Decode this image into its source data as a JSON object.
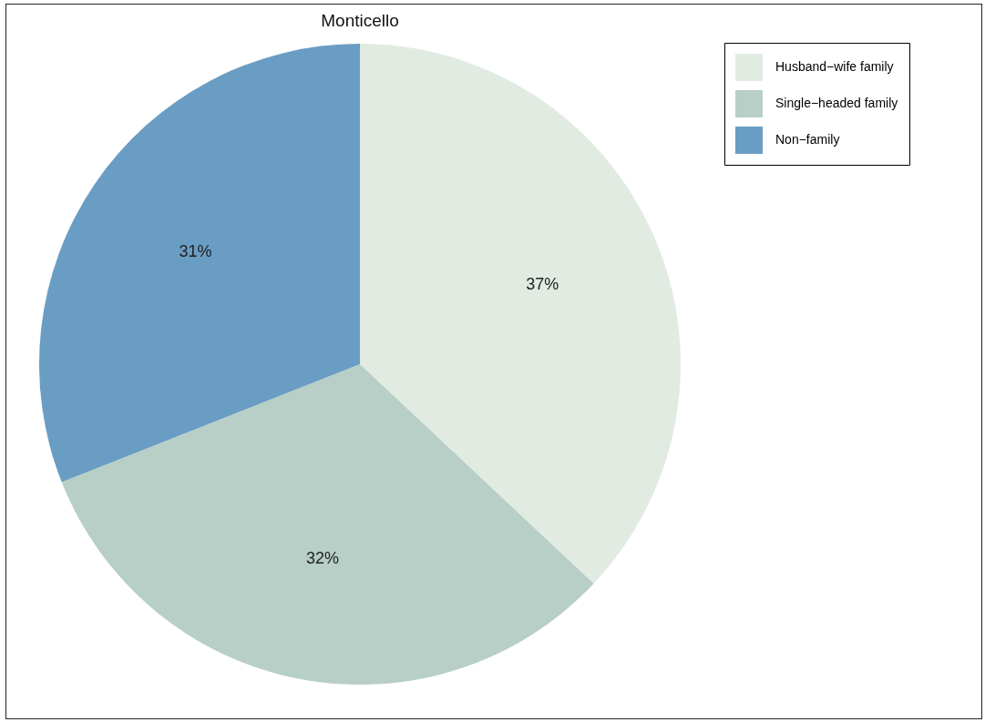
{
  "chart_data": {
    "type": "pie",
    "title": "Monticello",
    "categories": [
      "Husband−wife family",
      "Single−headed family",
      "Non−family"
    ],
    "values": [
      37,
      32,
      31
    ],
    "colors": [
      "#e1ebe2",
      "#b7cfc6",
      "#6a9dc3"
    ],
    "value_labels": [
      "37%",
      "32%",
      "31%"
    ],
    "legend": "right"
  }
}
